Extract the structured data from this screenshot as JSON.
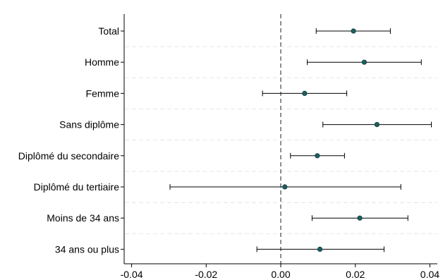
{
  "chart_data": {
    "type": "scatter",
    "title": "",
    "xlabel": "",
    "ylabel": "",
    "xlim": [
      -0.042,
      0.042
    ],
    "x_ticks": [
      -0.04,
      -0.02,
      0.0,
      0.02,
      0.04
    ],
    "x_tick_labels": [
      "-0.04",
      "-0.02",
      "0.00",
      "0.02",
      "0.04"
    ],
    "reference_line": {
      "x": 0,
      "style": "dashed"
    },
    "grid": "horizontal dashed",
    "categories": [
      "Total",
      "Homme",
      "Femme",
      "Sans diplôme",
      "Diplômé du secondaire",
      "Diplômé du tertiaire",
      "Moins de 34 ans",
      "34 ans ou plus"
    ],
    "estimates": [
      0.0195,
      0.0224,
      0.0064,
      0.0258,
      0.0098,
      0.0011,
      0.0212,
      0.0105
    ],
    "ci_low": [
      0.0095,
      0.0071,
      -0.0049,
      0.0113,
      0.0026,
      -0.0297,
      0.0084,
      -0.0064
    ],
    "ci_high": [
      0.0294,
      0.0377,
      0.0177,
      0.0404,
      0.0171,
      0.0322,
      0.0341,
      0.0277
    ],
    "colors": {
      "marker": "#1e5f60",
      "whisker": "#000000",
      "grid": "#e6e6e6",
      "axis": "#000000"
    }
  }
}
